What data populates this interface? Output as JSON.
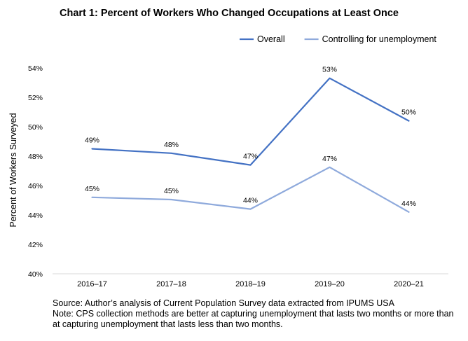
{
  "chart_data": {
    "type": "line",
    "title": "Chart 1: Percent of Workers Who Changed Occupations at Least Once",
    "ylabel": "Percent of  Workers Surveyed",
    "xlabel": "",
    "categories": [
      "2016–17",
      "2017–18",
      "2018–19",
      "2019–20",
      "2020–21"
    ],
    "ylim": [
      40,
      54
    ],
    "yticks": [
      40,
      42,
      44,
      46,
      48,
      50,
      52,
      54
    ],
    "ytick_labels": [
      "40%",
      "42%",
      "44%",
      "46%",
      "48%",
      "50%",
      "52%",
      "54%"
    ],
    "grid": false,
    "legend_position": "top-right",
    "series": [
      {
        "name": "Overall",
        "color": "#4472C4",
        "values": [
          48.5,
          48.2,
          47.4,
          53.3,
          50.4
        ],
        "labels": [
          "49%",
          "48%",
          "47%",
          "53%",
          "50%"
        ]
      },
      {
        "name": "Controlling for unemployment",
        "color": "#8FAADC",
        "values": [
          45.2,
          45.05,
          44.4,
          47.25,
          44.2
        ],
        "labels": [
          "45%",
          "45%",
          "44%",
          "47%",
          "44%"
        ]
      }
    ]
  },
  "notes": {
    "source": "Source: Author’s analysis of Current Population Survey data extracted from IPUMS USA",
    "note": "Note: CPS collection methods are better at capturing unemployment that lasts two months or more than at capturing unemployment that lasts less than two months."
  }
}
